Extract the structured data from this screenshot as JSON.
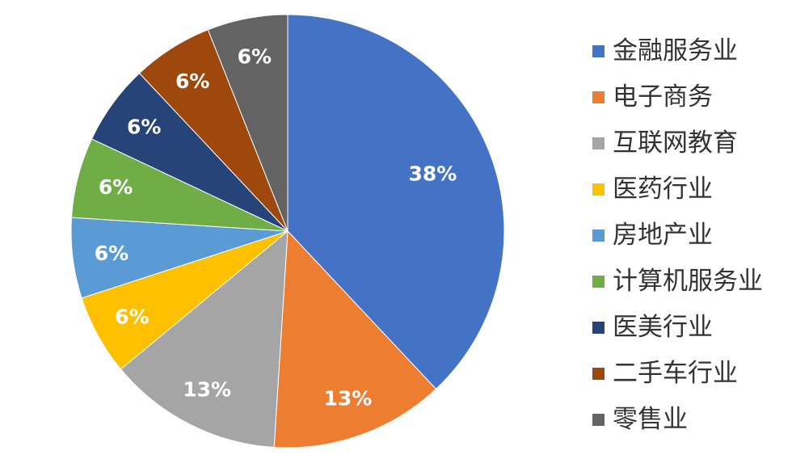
{
  "chart_data": {
    "type": "pie",
    "title": "",
    "legend_position": "right",
    "slices": [
      {
        "label": "金融服务业",
        "value": 38,
        "display": "38%",
        "color": "#4472C4"
      },
      {
        "label": "电子商务",
        "value": 13,
        "display": "13%",
        "color": "#ED7D31"
      },
      {
        "label": "互联网教育",
        "value": 13,
        "display": "13%",
        "color": "#A5A5A5"
      },
      {
        "label": "医药行业",
        "value": 6,
        "display": "6%",
        "color": "#FFC000"
      },
      {
        "label": "房地产业",
        "value": 6,
        "display": "6%",
        "color": "#5B9BD5"
      },
      {
        "label": "计算机服务业",
        "value": 6,
        "display": "6%",
        "color": "#70AD47"
      },
      {
        "label": "医美行业",
        "value": 6,
        "display": "6%",
        "color": "#264478"
      },
      {
        "label": "二手车行业",
        "value": 6,
        "display": "6%",
        "color": "#9E480E"
      },
      {
        "label": "零售业",
        "value": 6,
        "display": "6%",
        "color": "#636363"
      }
    ]
  }
}
